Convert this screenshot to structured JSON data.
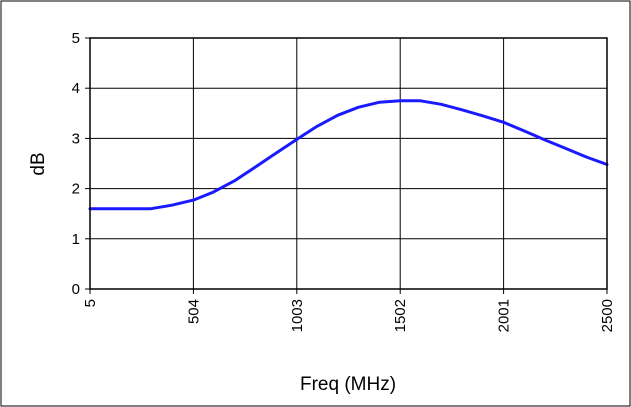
{
  "chart_data": {
    "type": "line",
    "xlabel": "Freq (MHz)",
    "ylabel": "dB",
    "xlim": [
      5,
      2500
    ],
    "ylim": [
      0,
      5
    ],
    "x_ticks": [
      5,
      504,
      1003,
      1502,
      2001,
      2500
    ],
    "y_ticks": [
      0,
      1,
      2,
      3,
      4,
      5
    ],
    "grid": true,
    "legend": "none",
    "series": [
      {
        "color": "#1a1aff",
        "x": [
          5,
          150,
          300,
          400,
          504,
          600,
          700,
          800,
          900,
          1003,
          1100,
          1200,
          1300,
          1400,
          1502,
          1600,
          1700,
          1800,
          1900,
          2001,
          2100,
          2200,
          2300,
          2400,
          2500
        ],
        "y": [
          1.6,
          1.6,
          1.6,
          1.67,
          1.77,
          1.93,
          2.15,
          2.42,
          2.7,
          2.98,
          3.24,
          3.46,
          3.62,
          3.72,
          3.75,
          3.75,
          3.68,
          3.57,
          3.45,
          3.32,
          3.15,
          2.97,
          2.8,
          2.63,
          2.48
        ]
      }
    ]
  }
}
